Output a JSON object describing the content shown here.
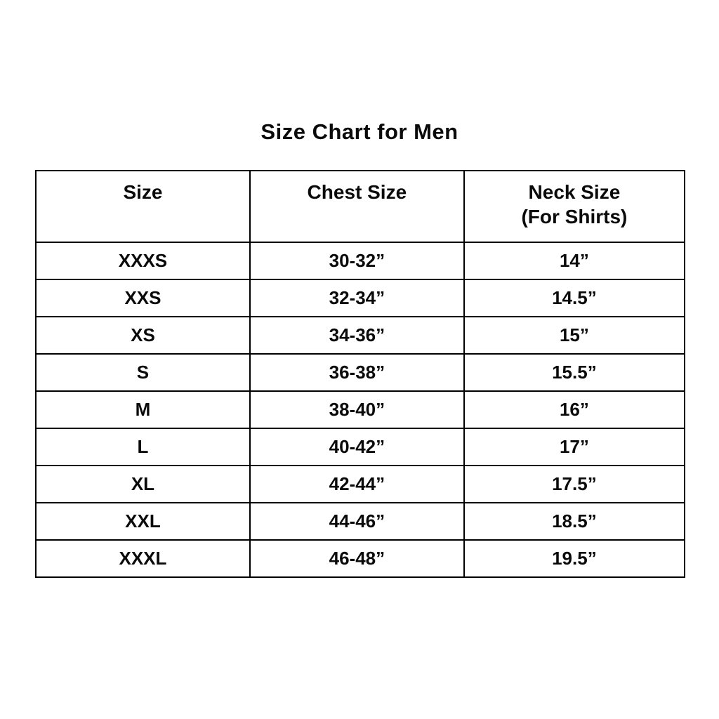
{
  "page": {
    "background_color": "#ffffff",
    "text_color": "#0a0a0a",
    "border_color": "#000000"
  },
  "chart_data": {
    "type": "table",
    "title": "Size Chart for Men",
    "columns": [
      {
        "label": "Size",
        "sublabel": ""
      },
      {
        "label": "Chest Size",
        "sublabel": ""
      },
      {
        "label": "Neck Size",
        "sublabel": "(For Shirts)"
      }
    ],
    "rows": [
      {
        "size": "XXXS",
        "chest": "30-32”",
        "neck": "14”"
      },
      {
        "size": "XXS",
        "chest": "32-34”",
        "neck": "14.5”"
      },
      {
        "size": "XS",
        "chest": "34-36”",
        "neck": "15”"
      },
      {
        "size": "S",
        "chest": "36-38”",
        "neck": "15.5”"
      },
      {
        "size": "M",
        "chest": "38-40”",
        "neck": "16”"
      },
      {
        "size": "L",
        "chest": "40-42”",
        "neck": "17”"
      },
      {
        "size": "XL",
        "chest": "42-44”",
        "neck": "17.5”"
      },
      {
        "size": "XXL",
        "chest": "44-46”",
        "neck": "18.5”"
      },
      {
        "size": "XXXL",
        "chest": "46-48”",
        "neck": "19.5”"
      }
    ]
  }
}
